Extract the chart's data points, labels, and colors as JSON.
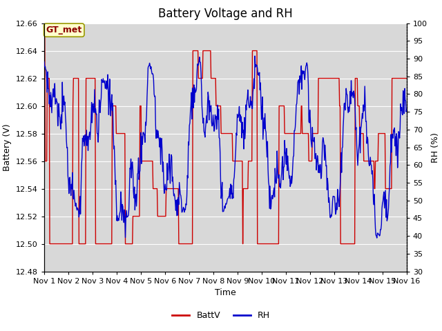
{
  "title": "Battery Voltage and RH",
  "xlabel": "Time",
  "ylabel_left": "Battery (V)",
  "ylabel_right": "RH (%)",
  "station_label": "GT_met",
  "ylim_left": [
    12.48,
    12.66
  ],
  "ylim_right": [
    30,
    100
  ],
  "yticks_left": [
    12.48,
    12.5,
    12.52,
    12.54,
    12.56,
    12.58,
    12.6,
    12.62,
    12.64,
    12.66
  ],
  "yticks_right": [
    30,
    35,
    40,
    45,
    50,
    55,
    60,
    65,
    70,
    75,
    80,
    85,
    90,
    95,
    100
  ],
  "xtick_labels": [
    "Nov 1",
    "Nov 2",
    "Nov 3",
    "Nov 4",
    "Nov 5",
    "Nov 6",
    "Nov 7",
    "Nov 8",
    "Nov 9",
    "Nov 10",
    "Nov 11",
    "Nov 12",
    "Nov 13",
    "Nov 14",
    "Nov 15",
    "Nov 16"
  ],
  "color_battv": "#cc0000",
  "color_rh": "#0000cc",
  "legend_labels": [
    "BattV",
    "RH"
  ],
  "background_color": "#ffffff",
  "plot_bg_color": "#ebebeb",
  "band_light": "#d8d8d8",
  "grid_color": "#ffffff",
  "title_fontsize": 12,
  "label_fontsize": 9,
  "tick_fontsize": 8,
  "legend_fontsize": 9,
  "n_days": 15,
  "seed": 42
}
